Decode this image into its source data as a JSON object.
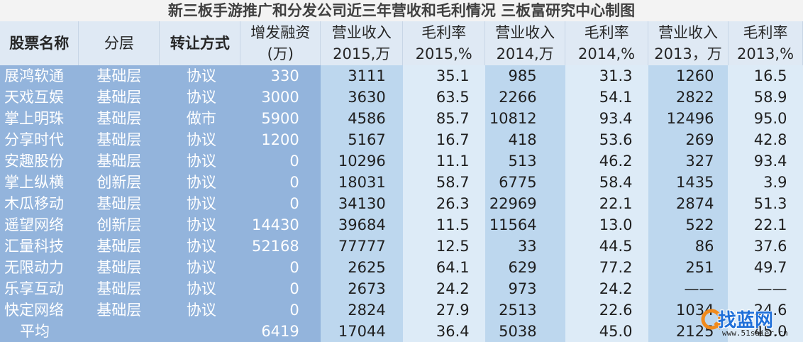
{
  "title": "新三板手游推广和分发公司近三年营收和毛利情况 三板富研究中心制图",
  "headers": [
    "股票名称",
    "分层",
    "转让方式",
    "增发融资(万)",
    "营业收入2015,万",
    "毛利率2015,%",
    "营业收入2014,万",
    "毛利率2014,%",
    "营业收入2013，万",
    "毛利率2013,%"
  ],
  "rows": [
    {
      "name": "展鸿软通",
      "layer": "基础层",
      "transfer": "协议",
      "financing": "330",
      "rev2015": "3111",
      "gm2015": "35.1",
      "rev2014": "985",
      "gm2014": "31.3",
      "rev2013": "1260",
      "gm2013": "16.5"
    },
    {
      "name": "天戏互娱",
      "layer": "基础层",
      "transfer": "协议",
      "financing": "3000",
      "rev2015": "3630",
      "gm2015": "63.5",
      "rev2014": "2266",
      "gm2014": "54.1",
      "rev2013": "2822",
      "gm2013": "58.9"
    },
    {
      "name": "掌上明珠",
      "layer": "基础层",
      "transfer": "做市",
      "financing": "5900",
      "rev2015": "4586",
      "gm2015": "85.7",
      "rev2014": "10812",
      "gm2014": "93.4",
      "rev2013": "12496",
      "gm2013": "95.0"
    },
    {
      "name": "分享时代",
      "layer": "基础层",
      "transfer": "协议",
      "financing": "1200",
      "rev2015": "5167",
      "gm2015": "16.7",
      "rev2014": "418",
      "gm2014": "53.6",
      "rev2013": "269",
      "gm2013": "42.8"
    },
    {
      "name": "安趣股份",
      "layer": "基础层",
      "transfer": "协议",
      "financing": "0",
      "rev2015": "10296",
      "gm2015": "11.1",
      "rev2014": "513",
      "gm2014": "46.2",
      "rev2013": "327",
      "gm2013": "93.4"
    },
    {
      "name": "掌上纵横",
      "layer": "创新层",
      "transfer": "协议",
      "financing": "0",
      "rev2015": "18031",
      "gm2015": "58.7",
      "rev2014": "6775",
      "gm2014": "58.4",
      "rev2013": "1435",
      "gm2013": "3.9"
    },
    {
      "name": "木瓜移动",
      "layer": "基础层",
      "transfer": "协议",
      "financing": "0",
      "rev2015": "34130",
      "gm2015": "26.3",
      "rev2014": "22969",
      "gm2014": "22.1",
      "rev2013": "2874",
      "gm2013": "51.3"
    },
    {
      "name": "遥望网络",
      "layer": "创新层",
      "transfer": "协议",
      "financing": "14430",
      "rev2015": "39684",
      "gm2015": "11.5",
      "rev2014": "11564",
      "gm2014": "13.0",
      "rev2013": "522",
      "gm2013": "22.1"
    },
    {
      "name": "汇量科技",
      "layer": "基础层",
      "transfer": "协议",
      "financing": "52168",
      "rev2015": "77777",
      "gm2015": "12.5",
      "rev2014": "33",
      "gm2014": "44.5",
      "rev2013": "86",
      "gm2013": "37.6"
    },
    {
      "name": "无限动力",
      "layer": "基础层",
      "transfer": "协议",
      "financing": "0",
      "rev2015": "2625",
      "gm2015": "64.1",
      "rev2014": "629",
      "gm2014": "77.2",
      "rev2013": "251",
      "gm2013": "49.7"
    },
    {
      "name": "乐享互动",
      "layer": "基础层",
      "transfer": "协议",
      "financing": "0",
      "rev2015": "2673",
      "gm2015": "24.2",
      "rev2014": "973",
      "gm2014": "24.2",
      "rev2013": "——",
      "gm2013": "——"
    },
    {
      "name": "快定网络",
      "layer": "基础层",
      "transfer": "协议",
      "financing": "0",
      "rev2015": "2824",
      "gm2015": "27.9",
      "rev2014": "2513",
      "gm2014": "22.6",
      "rev2013": "1034",
      "gm2013": "24.6"
    }
  ],
  "average": {
    "name": "平均",
    "layer": "",
    "transfer": "",
    "financing": "6419",
    "rev2015": "17044",
    "gm2015": "36.4",
    "rev2014": "5038",
    "gm2014": "45.0",
    "rev2013": "2125",
    "gm2013": "45.0"
  },
  "watermark": {
    "brand": "找蓝网",
    "url": "www.51saier.cn",
    "logo_icon": "q-logo-icon"
  }
}
